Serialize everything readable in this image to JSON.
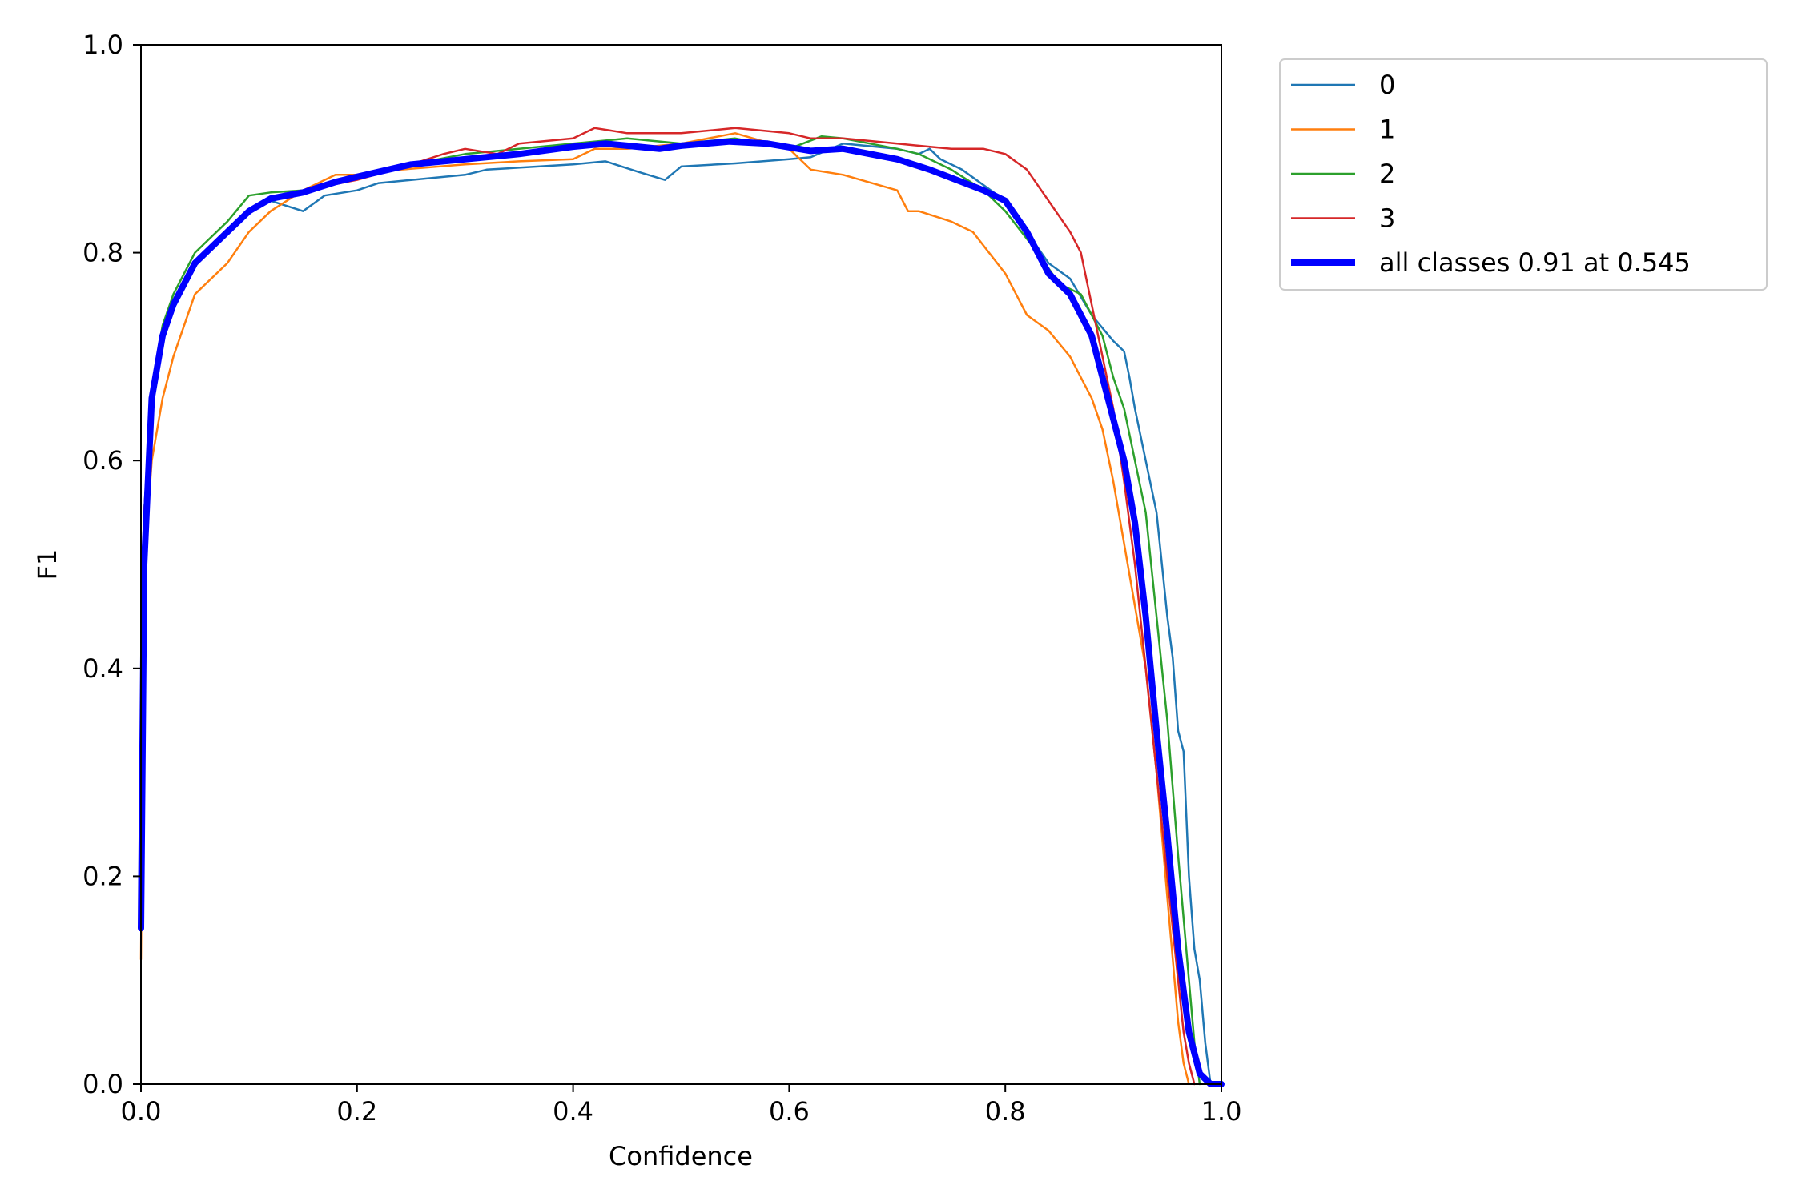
{
  "chart_data": {
    "type": "line",
    "title": "",
    "xlabel": "Confidence",
    "ylabel": "F1",
    "xlim": [
      0.0,
      1.0
    ],
    "ylim": [
      0.0,
      1.0
    ],
    "xticks": [
      "0.0",
      "0.2",
      "0.4",
      "0.6",
      "0.8",
      "1.0"
    ],
    "yticks": [
      "0.0",
      "0.2",
      "0.4",
      "0.6",
      "0.8",
      "1.0"
    ],
    "grid": false,
    "legend_position": "outside top-right",
    "series": [
      {
        "name": "0",
        "color": "#1f77b4",
        "x": [
          0.0,
          0.003,
          0.01,
          0.02,
          0.03,
          0.05,
          0.08,
          0.1,
          0.12,
          0.15,
          0.17,
          0.2,
          0.22,
          0.3,
          0.32,
          0.4,
          0.43,
          0.46,
          0.485,
          0.5,
          0.55,
          0.6,
          0.62,
          0.65,
          0.7,
          0.72,
          0.73,
          0.74,
          0.76,
          0.8,
          0.82,
          0.84,
          0.86,
          0.88,
          0.9,
          0.91,
          0.915,
          0.92,
          0.93,
          0.94,
          0.945,
          0.95,
          0.955,
          0.96,
          0.965,
          0.97,
          0.975,
          0.98,
          0.985,
          0.99
        ],
        "y": [
          0.35,
          0.55,
          0.66,
          0.72,
          0.75,
          0.79,
          0.82,
          0.84,
          0.85,
          0.84,
          0.855,
          0.86,
          0.867,
          0.875,
          0.88,
          0.885,
          0.888,
          0.878,
          0.87,
          0.883,
          0.886,
          0.89,
          0.892,
          0.905,
          0.9,
          0.895,
          0.9,
          0.89,
          0.88,
          0.85,
          0.82,
          0.79,
          0.775,
          0.74,
          0.715,
          0.705,
          0.68,
          0.65,
          0.6,
          0.55,
          0.5,
          0.45,
          0.41,
          0.34,
          0.32,
          0.2,
          0.13,
          0.1,
          0.04,
          0.0
        ]
      },
      {
        "name": "1",
        "color": "#ff7f0e",
        "x": [
          0.0,
          0.003,
          0.01,
          0.02,
          0.03,
          0.05,
          0.08,
          0.1,
          0.12,
          0.15,
          0.18,
          0.2,
          0.24,
          0.3,
          0.35,
          0.4,
          0.42,
          0.45,
          0.5,
          0.55,
          0.6,
          0.62,
          0.65,
          0.7,
          0.71,
          0.72,
          0.75,
          0.77,
          0.8,
          0.82,
          0.84,
          0.86,
          0.87,
          0.88,
          0.89,
          0.9,
          0.91,
          0.92,
          0.93,
          0.94,
          0.95,
          0.955,
          0.96,
          0.965,
          0.97
        ],
        "y": [
          0.12,
          0.5,
          0.6,
          0.66,
          0.7,
          0.76,
          0.79,
          0.82,
          0.84,
          0.86,
          0.875,
          0.875,
          0.88,
          0.885,
          0.888,
          0.89,
          0.9,
          0.9,
          0.905,
          0.915,
          0.9,
          0.88,
          0.875,
          0.86,
          0.84,
          0.84,
          0.83,
          0.82,
          0.78,
          0.74,
          0.725,
          0.7,
          0.68,
          0.66,
          0.63,
          0.58,
          0.52,
          0.46,
          0.4,
          0.3,
          0.18,
          0.12,
          0.06,
          0.02,
          0.0
        ]
      },
      {
        "name": "2",
        "color": "#2ca02c",
        "x": [
          0.0,
          0.003,
          0.01,
          0.02,
          0.03,
          0.05,
          0.08,
          0.1,
          0.12,
          0.15,
          0.2,
          0.25,
          0.3,
          0.35,
          0.4,
          0.45,
          0.5,
          0.55,
          0.6,
          0.63,
          0.65,
          0.7,
          0.72,
          0.75,
          0.78,
          0.8,
          0.83,
          0.85,
          0.87,
          0.88,
          0.89,
          0.9,
          0.91,
          0.92,
          0.93,
          0.94,
          0.95,
          0.96,
          0.97,
          0.975,
          0.98
        ],
        "y": [
          0.15,
          0.55,
          0.67,
          0.73,
          0.76,
          0.8,
          0.83,
          0.855,
          0.858,
          0.86,
          0.875,
          0.885,
          0.895,
          0.9,
          0.905,
          0.91,
          0.905,
          0.91,
          0.9,
          0.912,
          0.91,
          0.9,
          0.895,
          0.88,
          0.86,
          0.84,
          0.8,
          0.77,
          0.76,
          0.74,
          0.72,
          0.68,
          0.65,
          0.6,
          0.55,
          0.45,
          0.35,
          0.22,
          0.1,
          0.04,
          0.0
        ]
      },
      {
        "name": "3",
        "color": "#d62728",
        "x": [
          0.0,
          0.003,
          0.01,
          0.02,
          0.03,
          0.05,
          0.08,
          0.1,
          0.12,
          0.15,
          0.2,
          0.25,
          0.28,
          0.3,
          0.33,
          0.35,
          0.4,
          0.42,
          0.45,
          0.5,
          0.55,
          0.6,
          0.62,
          0.65,
          0.7,
          0.75,
          0.78,
          0.8,
          0.82,
          0.84,
          0.86,
          0.87,
          0.88,
          0.89,
          0.9,
          0.91,
          0.92,
          0.93,
          0.94,
          0.95,
          0.96,
          0.965,
          0.97,
          0.975
        ],
        "y": [
          0.15,
          0.55,
          0.66,
          0.72,
          0.75,
          0.79,
          0.82,
          0.84,
          0.85,
          0.86,
          0.87,
          0.885,
          0.895,
          0.9,
          0.895,
          0.905,
          0.91,
          0.92,
          0.915,
          0.915,
          0.92,
          0.915,
          0.91,
          0.91,
          0.905,
          0.9,
          0.9,
          0.895,
          0.88,
          0.85,
          0.82,
          0.8,
          0.75,
          0.7,
          0.65,
          0.58,
          0.5,
          0.4,
          0.3,
          0.2,
          0.1,
          0.05,
          0.02,
          0.0
        ]
      },
      {
        "name": "all classes 0.91 at 0.545",
        "color": "#0000ff",
        "x": [
          0.0,
          0.003,
          0.01,
          0.02,
          0.03,
          0.05,
          0.08,
          0.1,
          0.12,
          0.15,
          0.18,
          0.2,
          0.25,
          0.3,
          0.35,
          0.4,
          0.43,
          0.45,
          0.48,
          0.5,
          0.545,
          0.58,
          0.62,
          0.65,
          0.7,
          0.73,
          0.75,
          0.78,
          0.8,
          0.82,
          0.84,
          0.86,
          0.88,
          0.89,
          0.9,
          0.91,
          0.92,
          0.93,
          0.94,
          0.95,
          0.96,
          0.97,
          0.98,
          0.99,
          1.0
        ],
        "y": [
          0.15,
          0.5,
          0.66,
          0.72,
          0.75,
          0.79,
          0.82,
          0.84,
          0.852,
          0.858,
          0.868,
          0.873,
          0.885,
          0.89,
          0.895,
          0.902,
          0.905,
          0.903,
          0.9,
          0.903,
          0.907,
          0.905,
          0.898,
          0.9,
          0.89,
          0.88,
          0.872,
          0.86,
          0.85,
          0.82,
          0.78,
          0.76,
          0.72,
          0.68,
          0.64,
          0.6,
          0.54,
          0.45,
          0.34,
          0.24,
          0.13,
          0.05,
          0.01,
          0.0,
          0.0
        ]
      }
    ]
  }
}
